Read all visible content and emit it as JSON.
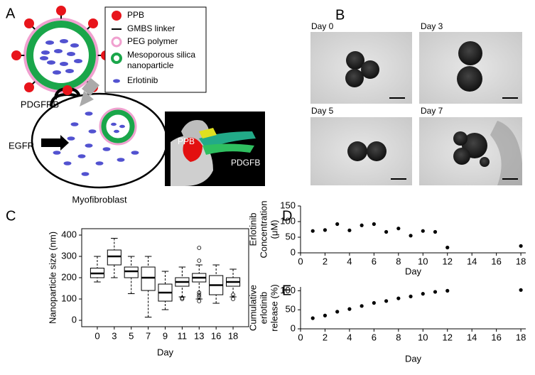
{
  "panels": {
    "A": {
      "label": "A",
      "legend": [
        [
          "PPB"
        ],
        [
          "GMBS linker"
        ],
        [
          "PEG polymer"
        ],
        [
          "Mesoporous silica",
          "nanoparticle"
        ],
        [
          "Erlotinib"
        ]
      ],
      "receptors": [
        "PDGFRB",
        "EGFR"
      ],
      "cell": "Myofibroblast",
      "inset": [
        "PPB",
        "PDGFB"
      ]
    },
    "B": {
      "label": "B",
      "images": [
        "Day 0",
        "Day 3",
        "Day 5",
        "Day 7"
      ]
    }
  },
  "chart_data": [
    {
      "type": "box",
      "panel_label": "C",
      "ylabel": "Nanoparticle size (nm)",
      "xlabel": "Day",
      "categories": [
        "0",
        "3",
        "5",
        "7",
        "9",
        "11",
        "13",
        "16",
        "18"
      ],
      "min": [
        180,
        200,
        125,
        15,
        50,
        110,
        100,
        80,
        110
      ],
      "q1": [
        200,
        260,
        200,
        140,
        90,
        160,
        180,
        120,
        160
      ],
      "median": [
        220,
        300,
        230,
        200,
        130,
        180,
        200,
        165,
        180
      ],
      "q3": [
        245,
        330,
        250,
        250,
        170,
        200,
        220,
        210,
        200
      ],
      "max": [
        300,
        385,
        300,
        300,
        230,
        250,
        260,
        260,
        240
      ],
      "outliers": [
        [],
        [],
        [],
        [],
        [],
        [
          100,
          105
        ],
        [
          340,
          280,
          130,
          120,
          110,
          90
        ],
        [],
        [
          120,
          100
        ]
      ],
      "color": "#000000",
      "ylim": [
        -30,
        430
      ],
      "yticks": [
        0,
        100,
        200,
        300,
        400
      ]
    },
    {
      "type": "scatter",
      "panel_label": "D",
      "ylabel": [
        "Erlotinib",
        "Concentration",
        "(μM)"
      ],
      "xlabel": "Day",
      "x": [
        1,
        2,
        3,
        4,
        5,
        6,
        7,
        8,
        9,
        10,
        11,
        12,
        18
      ],
      "values": [
        70,
        73,
        92,
        72,
        88,
        92,
        67,
        78,
        55,
        70,
        67,
        17,
        22
      ],
      "color": "#000000",
      "xlim": [
        0,
        18.4
      ],
      "xticks": [
        0,
        2,
        4,
        6,
        8,
        10,
        12,
        14,
        16,
        18
      ],
      "ylim": [
        0,
        150
      ],
      "yticks": [
        0,
        50,
        100,
        150
      ]
    },
    {
      "type": "scatter",
      "panel_label": "E",
      "ylabel": [
        "Cumulative",
        "erlotinib",
        "release (%)"
      ],
      "xlabel": "Day",
      "x": [
        1,
        2,
        3,
        4,
        5,
        6,
        7,
        8,
        9,
        10,
        11,
        12,
        18
      ],
      "values": [
        28,
        35,
        45,
        52,
        60,
        68,
        73,
        80,
        85,
        92,
        97,
        100,
        102
      ],
      "color": "#000000",
      "xlim": [
        0,
        18.4
      ],
      "xticks": [
        0,
        2,
        4,
        6,
        8,
        10,
        12,
        14,
        16,
        18
      ],
      "ylim": [
        0,
        110
      ],
      "yticks": [
        0,
        50,
        100
      ]
    }
  ]
}
